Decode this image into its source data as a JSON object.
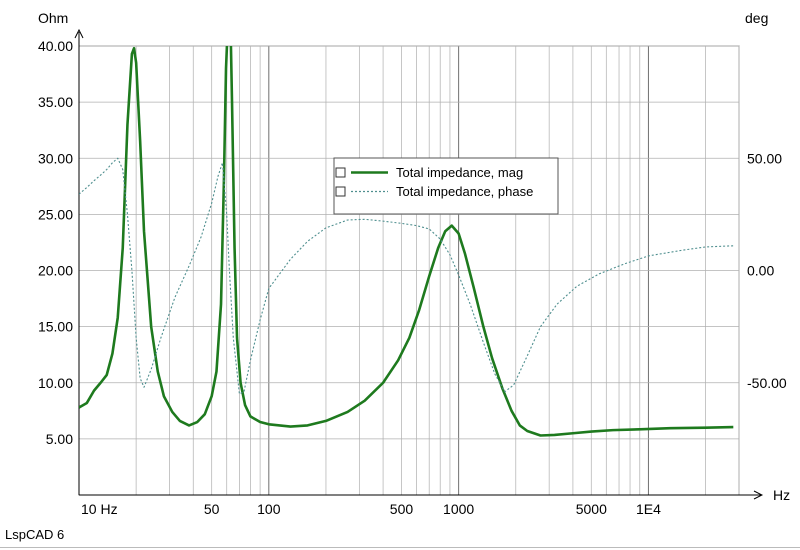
{
  "app": {
    "footer_label": "LspCAD 6"
  },
  "chart_data": {
    "type": "line",
    "x_scale": "log",
    "xlim": [
      10,
      30000
    ],
    "y_left": {
      "unit": "Ohm",
      "ylim": [
        0,
        40
      ],
      "ticks": [
        5,
        10,
        15,
        20,
        25,
        30,
        35,
        40
      ],
      "tick_labels": [
        "5.00",
        "10.00",
        "15.00",
        "20.00",
        "25.00",
        "30.00",
        "35.00",
        "40.00"
      ]
    },
    "y_right": {
      "unit": "deg",
      "ylim": [
        -100,
        100
      ],
      "ticks": [
        -50,
        0,
        50
      ],
      "tick_labels": [
        "-50.00",
        "0.00",
        "50.00"
      ]
    },
    "x_unit": "Hz",
    "x_tick_labels": [
      {
        "x": 10,
        "label": "10 Hz"
      },
      {
        "x": 50,
        "label": "50"
      },
      {
        "x": 100,
        "label": "100"
      },
      {
        "x": 500,
        "label": "500"
      },
      {
        "x": 1000,
        "label": "1000"
      },
      {
        "x": 5000,
        "label": "5000"
      },
      {
        "x": 10000,
        "label": "1E4"
      }
    ],
    "grid": true,
    "legend_position": "center-right",
    "series": [
      {
        "name": "Total impedance, mag",
        "axis": "left",
        "color": "#1e7a1e",
        "style": "solid",
        "points": [
          [
            10,
            7.8
          ],
          [
            11,
            8.2
          ],
          [
            12,
            9.3
          ],
          [
            13,
            10.0
          ],
          [
            14,
            10.7
          ],
          [
            15,
            12.6
          ],
          [
            16,
            15.8
          ],
          [
            17,
            22.0
          ],
          [
            18,
            33.0
          ],
          [
            19,
            39.3
          ],
          [
            19.5,
            39.8
          ],
          [
            20,
            38.5
          ],
          [
            21,
            31.5
          ],
          [
            22,
            23.5
          ],
          [
            24,
            15.0
          ],
          [
            26,
            11.0
          ],
          [
            28,
            8.8
          ],
          [
            31,
            7.4
          ],
          [
            34,
            6.6
          ],
          [
            38,
            6.2
          ],
          [
            42,
            6.5
          ],
          [
            46,
            7.2
          ],
          [
            50,
            8.8
          ],
          [
            53,
            11.0
          ],
          [
            56,
            17.0
          ],
          [
            58,
            28.0
          ],
          [
            59.5,
            38.0
          ],
          [
            60.5,
            41
          ],
          [
            63,
            41
          ],
          [
            64,
            35.0
          ],
          [
            66,
            22.0
          ],
          [
            68,
            14.0
          ],
          [
            71,
            10.0
          ],
          [
            75,
            8.0
          ],
          [
            80,
            7.0
          ],
          [
            90,
            6.5
          ],
          [
            100,
            6.3
          ],
          [
            130,
            6.1
          ],
          [
            160,
            6.2
          ],
          [
            200,
            6.6
          ],
          [
            260,
            7.4
          ],
          [
            320,
            8.4
          ],
          [
            400,
            10.0
          ],
          [
            480,
            12.0
          ],
          [
            550,
            14.0
          ],
          [
            620,
            16.5
          ],
          [
            700,
            19.5
          ],
          [
            780,
            22.0
          ],
          [
            850,
            23.5
          ],
          [
            920,
            24.0
          ],
          [
            1000,
            23.3
          ],
          [
            1080,
            21.5
          ],
          [
            1200,
            18.5
          ],
          [
            1350,
            15.0
          ],
          [
            1500,
            12.2
          ],
          [
            1700,
            9.5
          ],
          [
            1900,
            7.5
          ],
          [
            2100,
            6.2
          ],
          [
            2300,
            5.7
          ],
          [
            2700,
            5.3
          ],
          [
            3200,
            5.35
          ],
          [
            4000,
            5.5
          ],
          [
            5000,
            5.65
          ],
          [
            6500,
            5.78
          ],
          [
            9000,
            5.85
          ],
          [
            13000,
            5.95
          ],
          [
            20000,
            6.0
          ],
          [
            28000,
            6.05
          ]
        ]
      },
      {
        "name": "Total impedance, phase",
        "axis": "right",
        "color": "#4f8f8f",
        "style": "dotted",
        "points": [
          [
            10,
            34
          ],
          [
            11,
            37
          ],
          [
            12,
            40
          ],
          [
            13,
            42.5
          ],
          [
            14,
            45
          ],
          [
            15,
            48
          ],
          [
            16,
            50
          ],
          [
            17,
            45
          ],
          [
            18,
            25
          ],
          [
            19,
            0
          ],
          [
            20,
            -30
          ],
          [
            21,
            -48
          ],
          [
            22,
            -52
          ],
          [
            24,
            -44
          ],
          [
            27,
            -30
          ],
          [
            32,
            -12
          ],
          [
            38,
            2
          ],
          [
            44,
            15
          ],
          [
            50,
            30
          ],
          [
            54,
            42
          ],
          [
            57,
            48
          ],
          [
            60,
            25
          ],
          [
            62,
            0
          ],
          [
            65,
            -30
          ],
          [
            70,
            -55
          ],
          [
            74,
            -54
          ],
          [
            80,
            -40
          ],
          [
            90,
            -22
          ],
          [
            100,
            -8
          ],
          [
            130,
            5
          ],
          [
            160,
            13
          ],
          [
            200,
            19
          ],
          [
            260,
            22.5
          ],
          [
            320,
            22.8
          ],
          [
            400,
            22
          ],
          [
            500,
            21
          ],
          [
            600,
            20
          ],
          [
            700,
            18.5
          ],
          [
            800,
            14
          ],
          [
            900,
            7
          ],
          [
            1000,
            -2
          ],
          [
            1150,
            -15
          ],
          [
            1350,
            -32
          ],
          [
            1550,
            -46
          ],
          [
            1750,
            -54
          ],
          [
            1950,
            -51
          ],
          [
            2300,
            -38
          ],
          [
            2700,
            -25
          ],
          [
            3300,
            -15
          ],
          [
            4200,
            -7
          ],
          [
            5500,
            -1.5
          ],
          [
            7500,
            3
          ],
          [
            10000,
            6.5
          ],
          [
            15000,
            9
          ],
          [
            20000,
            10.5
          ],
          [
            28000,
            11
          ]
        ]
      }
    ]
  }
}
